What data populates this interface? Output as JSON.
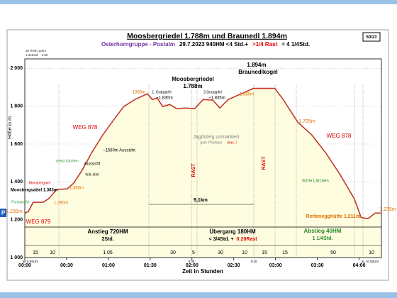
{
  "chart_data": {
    "type": "line",
    "title": "Moosbergriedel 1.788m und Braunedl 1.894m",
    "subtitle": [
      {
        "text": "Osterhorngruppe - Postalm",
        "color": "#7030a0"
      },
      {
        "text": "29.7.2023   940HM  <4 Std.+",
        "color": "#000000"
      },
      {
        "text": ">1/4 Rast",
        "color": "#e00000"
      },
      {
        "text": "= 4 1/4Std.",
        "color": "#000000"
      }
    ],
    "badge": "50/23",
    "x_label": "Zeit in Stunden",
    "y_label": "Höhe in m",
    "notes": [
      "ab Reith 12km",
      "1:345std. - 1:55"
    ],
    "x": [
      0,
      2.5,
      6,
      13,
      17,
      23,
      30.5,
      35,
      41,
      48,
      56,
      64,
      71,
      79,
      88,
      91.5,
      95,
      99,
      104,
      109,
      115,
      122,
      128,
      135,
      140,
      146,
      154,
      164,
      179.5,
      185.5,
      196,
      206,
      216,
      226,
      236.5,
      241.5,
      246.5,
      251.5,
      255.5
    ],
    "series": [
      {
        "color": "#c0392b",
        "values": [
          1235,
          1243,
          1292,
          1292,
          1310,
          1360,
          1363,
          1393,
          1460,
          1554,
          1648,
          1730,
          1798,
          1835,
          1866,
          1835,
          1843,
          1798,
          1809,
          1787,
          1790,
          1787,
          1835,
          1832,
          1790,
          1835,
          1861,
          1894,
          1894,
          1835,
          1715,
          1648,
          1554,
          1442,
          1311,
          1211,
          1206,
          1235,
          1235
        ]
      }
    ],
    "fill_color": "#fffde0",
    "xlim": [
      0,
      256
    ],
    "xticks": [
      {
        "value": 0,
        "label": "00:00"
      },
      {
        "value": 30,
        "label": "00:30"
      },
      {
        "value": 60,
        "label": "01:00"
      },
      {
        "value": 90,
        "label": "01:30"
      },
      {
        "value": 120,
        "label": "02:00"
      },
      {
        "value": 150,
        "label": "02:30"
      },
      {
        "value": 180,
        "label": "03:00"
      },
      {
        "value": 210,
        "label": "03:30"
      },
      {
        "value": 240,
        "label": "04:00"
      }
    ],
    "ylim": [
      1000,
      2050
    ],
    "yticks": [
      {
        "value": 1000,
        "label": "1 000"
      },
      {
        "value": 1200,
        "label": "1 200"
      },
      {
        "value": 1400,
        "label": "1 400"
      },
      {
        "value": 1600,
        "label": "1 600"
      },
      {
        "value": 1800,
        "label": "1 800"
      },
      {
        "value": 2000,
        "label": "2 000"
      }
    ],
    "grid": true,
    "annotations": [
      {
        "text": "1.894m",
        "color": "#000000"
      },
      {
        "text": "Braunedlkogel",
        "color": "#000000"
      },
      {
        "text": "Moosbergriedel",
        "color": "#000000"
      },
      {
        "text": "1.788m",
        "color": "#000000"
      },
      {
        "text": "1866m",
        "color": "#e07000"
      },
      {
        "text": "1. Gratgipfel",
        "color": "#000000"
      },
      {
        "text": "~1.830m",
        "color": "#000000"
      },
      {
        "text": "2.Gratgipfel",
        "color": "#000000"
      },
      {
        "text": "~1.835m",
        "color": "#000000"
      },
      {
        "text": "1.860m",
        "color": "#e07000"
      },
      {
        "text": "1.705m",
        "color": "#e07000"
      },
      {
        "text": "Jagdsteig unmarkiert",
        "color": "#808080"
      },
      {
        "text": "gute Pfadspur",
        "color": "#808080"
      },
      {
        "text": "max. I",
        "color": "#e00000"
      },
      {
        "text": "~1580m Aussicht",
        "color": "#000000"
      },
      {
        "text": "Aussicht",
        "color": "#000000"
      },
      {
        "text": "teils steil",
        "color": "#000000"
      },
      {
        "text": "meist Lärchen",
        "color": "#2e8b2e"
      },
      {
        "text": "WEG 878",
        "color": "#e00000"
      },
      {
        "text": "WEG 878",
        "color": "#e00000"
      },
      {
        "text": "WEG 879",
        "color": "#e00000"
      },
      {
        "text": "Forststraße",
        "color": "#2e8b2e"
      },
      {
        "text": "Moosbergalm",
        "color": "#e00000"
      },
      {
        "text": "Moosbergsattel 1.363m",
        "color": "#000000"
      },
      {
        "text": "1.360m",
        "color": "#e07000"
      },
      {
        "text": "1.290m",
        "color": "#e07000"
      },
      {
        "text": "1.235m",
        "color": "#e07000"
      },
      {
        "text": "1.235m",
        "color": "#e07000"
      },
      {
        "text": "Rettenegghütte 1.211m",
        "color": "#e07000"
      },
      {
        "text": "lichte Lärchen",
        "color": "#2e8b2e"
      },
      {
        "text": "RAST",
        "color": "#e00000"
      },
      {
        "text": "RAST",
        "color": "#e00000"
      },
      {
        "text": "9,1km",
        "color": "#000000"
      },
      {
        "text": "Anstieg 720HM",
        "color": "#000000"
      },
      {
        "text": "2Std.",
        "color": "#000000"
      },
      {
        "text": "Übergang 180HM",
        "color": "#000000"
      },
      {
        "text": "< 3/4Std. +",
        "color": "#000000"
      },
      {
        "text": "0:20Rast",
        "color": "#e00000"
      },
      {
        "text": "Abstieg 40HM",
        "color": "#2e8b2e"
      },
      {
        "text": "1 1/4Std.",
        "color": "#2e8b2e"
      },
      {
        "text": "ab 6:55Uhr",
        "color": "#000000"
      },
      {
        "text": "9:35",
        "color": "#000000"
      },
      {
        "text": "9:20",
        "color": "#000000"
      },
      {
        "text": "an 10:50Uhr",
        "color": "#000000"
      },
      {
        "text": "P",
        "color": "#ffffff"
      }
    ],
    "durations": [
      "15",
      "10",
      "1 05",
      "30",
      "5",
      "30",
      "10",
      "15",
      "15",
      "50",
      "10"
    ]
  }
}
